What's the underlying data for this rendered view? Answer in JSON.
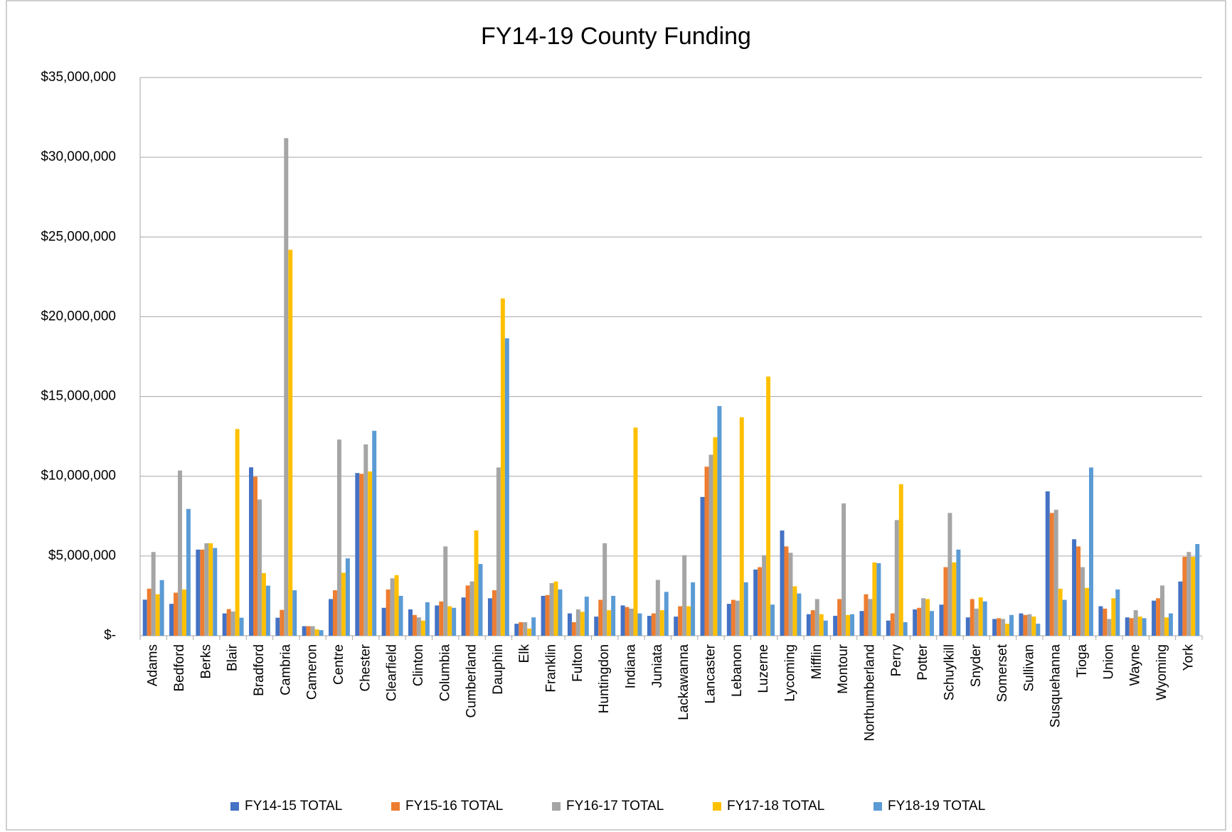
{
  "chart_data": {
    "type": "bar",
    "title": "FY14-19 County Funding",
    "categories": [
      "Adams",
      "Bedford",
      "Berks",
      "Blair",
      "Bradford",
      "Cambria",
      "Cameron",
      "Centre",
      "Chester",
      "Clearfield",
      "Clinton",
      "Columbia",
      "Cumberland",
      "Dauphin",
      "Elk",
      "Franklin",
      "Fulton",
      "Huntingdon",
      "Indiana",
      "Juniata",
      "Lackawanna",
      "Lancaster",
      "Lebanon",
      "Luzerne",
      "Lycoming",
      "Mifflin",
      "Montour",
      "Northumberland",
      "Perry",
      "Potter",
      "Schuylkill",
      "Snyder",
      "Somerset",
      "Sullivan",
      "Susquehanna",
      "Tioga",
      "Union",
      "Wayne",
      "Wyoming",
      "York"
    ],
    "series": [
      {
        "name": "FY14-15 TOTAL",
        "color": "#4472c4",
        "values": [
          2260000,
          2000000,
          5400000,
          1400000,
          10560000,
          1130000,
          600000,
          2300000,
          10200000,
          1750000,
          1650000,
          1900000,
          2400000,
          2350000,
          750000,
          2500000,
          1400000,
          1200000,
          1900000,
          1250000,
          1200000,
          8700000,
          2000000,
          4150000,
          6600000,
          1350000,
          1250000,
          1550000,
          950000,
          1650000,
          1950000,
          1150000,
          1050000,
          1400000,
          9050000,
          6050000,
          1850000,
          1150000,
          2200000,
          3400000
        ]
      },
      {
        "name": "FY15-16 TOTAL",
        "color": "#ed7d31",
        "values": [
          2950000,
          2700000,
          5400000,
          1670000,
          9970000,
          1620000,
          600000,
          2850000,
          10150000,
          2900000,
          1300000,
          2150000,
          3150000,
          2850000,
          850000,
          2550000,
          850000,
          2250000,
          1800000,
          1400000,
          1850000,
          10600000,
          2250000,
          4300000,
          5600000,
          1600000,
          2300000,
          2600000,
          1400000,
          1750000,
          4300000,
          2300000,
          1100000,
          1300000,
          7700000,
          5600000,
          1700000,
          1100000,
          2350000,
          4950000
        ]
      },
      {
        "name": "FY16-17 TOTAL",
        "color": "#a5a5a5",
        "values": [
          5250000,
          10360000,
          5800000,
          1520000,
          8540000,
          31200000,
          600000,
          12300000,
          12000000,
          3600000,
          1150000,
          5600000,
          3400000,
          10550000,
          850000,
          3300000,
          1650000,
          5800000,
          1700000,
          3500000,
          5050000,
          11350000,
          2200000,
          5050000,
          5200000,
          2300000,
          8300000,
          2300000,
          7250000,
          2350000,
          7700000,
          1700000,
          1050000,
          1350000,
          7900000,
          4300000,
          1050000,
          1600000,
          3150000,
          5250000
        ]
      },
      {
        "name": "FY17-18 TOTAL",
        "color": "#ffc000",
        "values": [
          2600000,
          2900000,
          5800000,
          12960000,
          3930000,
          24200000,
          400000,
          3950000,
          10300000,
          3800000,
          950000,
          1850000,
          6600000,
          21150000,
          450000,
          3400000,
          1500000,
          1600000,
          13050000,
          1600000,
          1850000,
          12450000,
          13700000,
          16250000,
          3100000,
          1350000,
          1300000,
          4600000,
          9500000,
          2300000,
          4600000,
          2400000,
          750000,
          1200000,
          2950000,
          3000000,
          2350000,
          1200000,
          1150000,
          4950000
        ]
      },
      {
        "name": "FY18-19 TOTAL",
        "color": "#5b9bd5",
        "values": [
          3490000,
          7950000,
          5500000,
          1130000,
          3140000,
          2850000,
          350000,
          4850000,
          12850000,
          2500000,
          2100000,
          1750000,
          4500000,
          18650000,
          1150000,
          2900000,
          2450000,
          2500000,
          1400000,
          2750000,
          3350000,
          14400000,
          3350000,
          1950000,
          2650000,
          950000,
          1350000,
          4550000,
          850000,
          1550000,
          5400000,
          2150000,
          1300000,
          750000,
          2250000,
          10550000,
          2900000,
          1100000,
          1400000,
          5750000
        ]
      }
    ],
    "ylim": [
      0,
      35000000
    ],
    "yticks": [
      {
        "value": 0,
        "label": "$-"
      },
      {
        "value": 5000000,
        "label": "$5,000,000"
      },
      {
        "value": 10000000,
        "label": "$10,000,000"
      },
      {
        "value": 15000000,
        "label": "$15,000,000"
      },
      {
        "value": 20000000,
        "label": "$20,000,000"
      },
      {
        "value": 25000000,
        "label": "$25,000,000"
      },
      {
        "value": 30000000,
        "label": "$30,000,000"
      },
      {
        "value": 35000000,
        "label": "$35,000,000"
      }
    ],
    "grid": true,
    "legend": "bottom"
  }
}
